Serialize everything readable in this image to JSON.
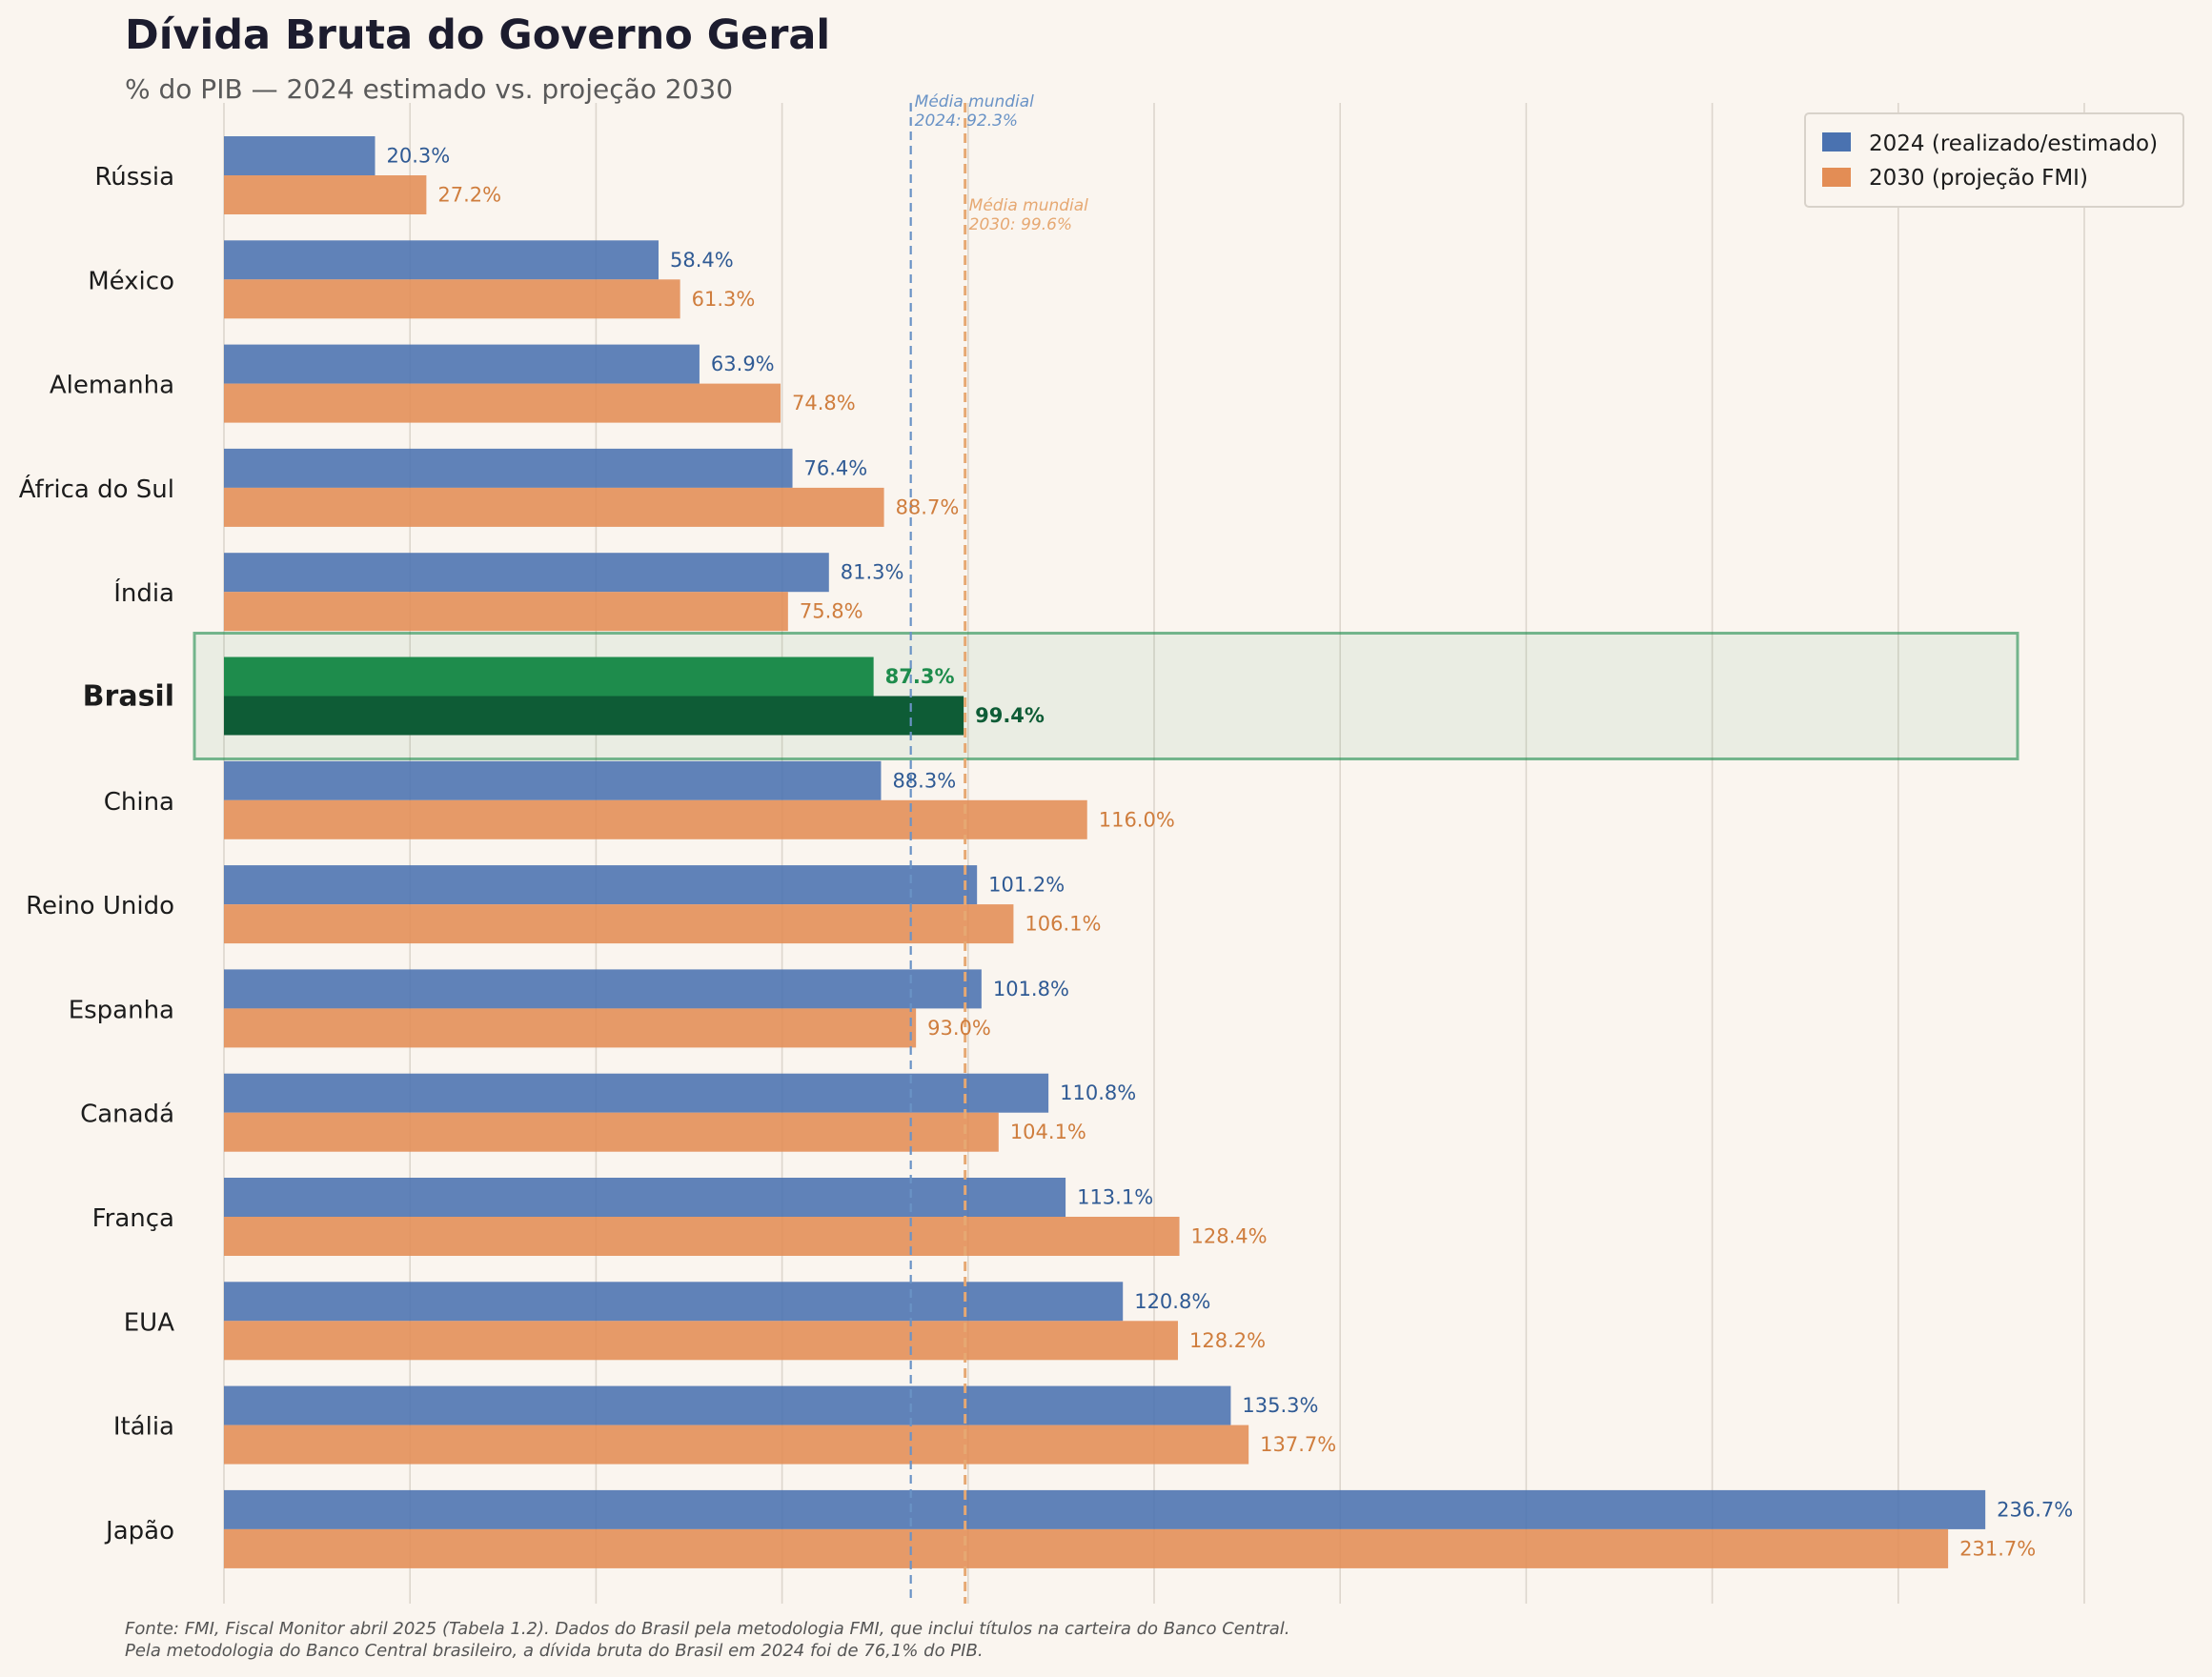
{
  "chart_data": {
    "type": "bar",
    "orientation": "horizontal",
    "title": "Dívida Bruta do Governo Geral",
    "subtitle": "% do PIB — 2024 estimado vs. projeção 2030",
    "xlim": [
      0,
      250
    ],
    "grid": "vertical",
    "legend_position": "top-right",
    "categories": [
      "Rússia",
      "México",
      "Alemanha",
      "África do Sul",
      "Índia",
      "Brasil",
      "China",
      "Reino Unido",
      "Espanha",
      "Canadá",
      "França",
      "EUA",
      "Itália",
      "Japão"
    ],
    "highlight_category": "Brasil",
    "value_suffix": "%",
    "series": [
      {
        "name": "2024 (realizado/estimado)",
        "color": "#4a72b0",
        "label_color": "#2f5a94",
        "highlight_color": "#1e8c4c",
        "values": [
          20.3,
          58.4,
          63.9,
          76.4,
          81.3,
          87.3,
          88.3,
          101.2,
          101.8,
          110.8,
          113.1,
          120.8,
          135.3,
          236.7
        ]
      },
      {
        "name": "2030 (projeção FMI)",
        "color": "#e38d55",
        "label_color": "#cf7d3d",
        "highlight_color": "#0e5c36",
        "values": [
          27.2,
          61.3,
          74.8,
          88.7,
          75.8,
          99.4,
          116.0,
          106.1,
          93.0,
          104.1,
          128.4,
          128.2,
          137.7,
          231.7
        ]
      }
    ],
    "reference_lines": [
      {
        "value": 92.3,
        "label_line1": "Média mundial",
        "label_line2": "2024: 92.3%",
        "color": "#6a93c6"
      },
      {
        "value": 99.6,
        "label_line1": "Média mundial",
        "label_line2": "2030: 99.6%",
        "color": "#e6a872"
      }
    ],
    "highlight_color": "#1e8c4c"
  },
  "footnote": {
    "line1": "Fonte: FMI, Fiscal Monitor abril 2025 (Tabela 1.2). Dados do Brasil pela metodologia FMI, que inclui títulos na carteira do Banco Central.",
    "line2": "Pela metodologia do Banco Central brasileiro, a dívida bruta do Brasil em 2024 foi de 76,1% do PIB."
  }
}
